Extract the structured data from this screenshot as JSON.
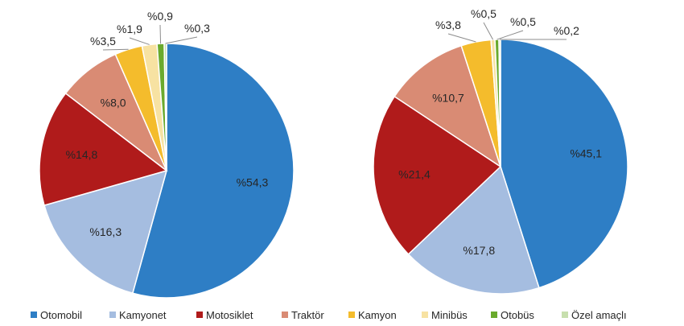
{
  "chart_data": [
    {
      "type": "pie",
      "categories": [
        "Otomobil",
        "Kamyonet",
        "Motosiklet",
        "Traktör",
        "Kamyon",
        "Minibüs",
        "Otobüs",
        "Özel amaçlı"
      ],
      "values": [
        54.3,
        16.3,
        14.8,
        8.0,
        3.5,
        1.9,
        0.9,
        0.3
      ],
      "labels": [
        "%54,3",
        "%16,3",
        "%14,8",
        "%8,0",
        "%3,5",
        "%1,9",
        "%0,9",
        "%0,3"
      ]
    },
    {
      "type": "pie",
      "categories": [
        "Otomobil",
        "Kamyonet",
        "Motosiklet",
        "Traktör",
        "Kamyon",
        "Minibüs",
        "Otobüs",
        "Özel amaçlı"
      ],
      "values": [
        45.1,
        17.8,
        21.4,
        10.7,
        3.8,
        0.5,
        0.5,
        0.2
      ],
      "labels": [
        "%45,1",
        "%17,8",
        "%21,4",
        "%10,7",
        "%3,8",
        "%0,5",
        "%0,5",
        "%0,2"
      ]
    }
  ],
  "legend": {
    "position": "bottom",
    "items": [
      {
        "label": "Otomobil",
        "color": "#2e7ec5"
      },
      {
        "label": "Kamyonet",
        "color": "#a5bde0"
      },
      {
        "label": "Motosiklet",
        "color": "#b01b1b"
      },
      {
        "label": "Traktör",
        "color": "#d98b74"
      },
      {
        "label": "Kamyon",
        "color": "#f4bc2c"
      },
      {
        "label": "Minibüs",
        "color": "#f7e2a2"
      },
      {
        "label": "Otobüs",
        "color": "#6aaa2d"
      },
      {
        "label": "Özel amaçlı",
        "color": "#c7dfae"
      }
    ]
  }
}
